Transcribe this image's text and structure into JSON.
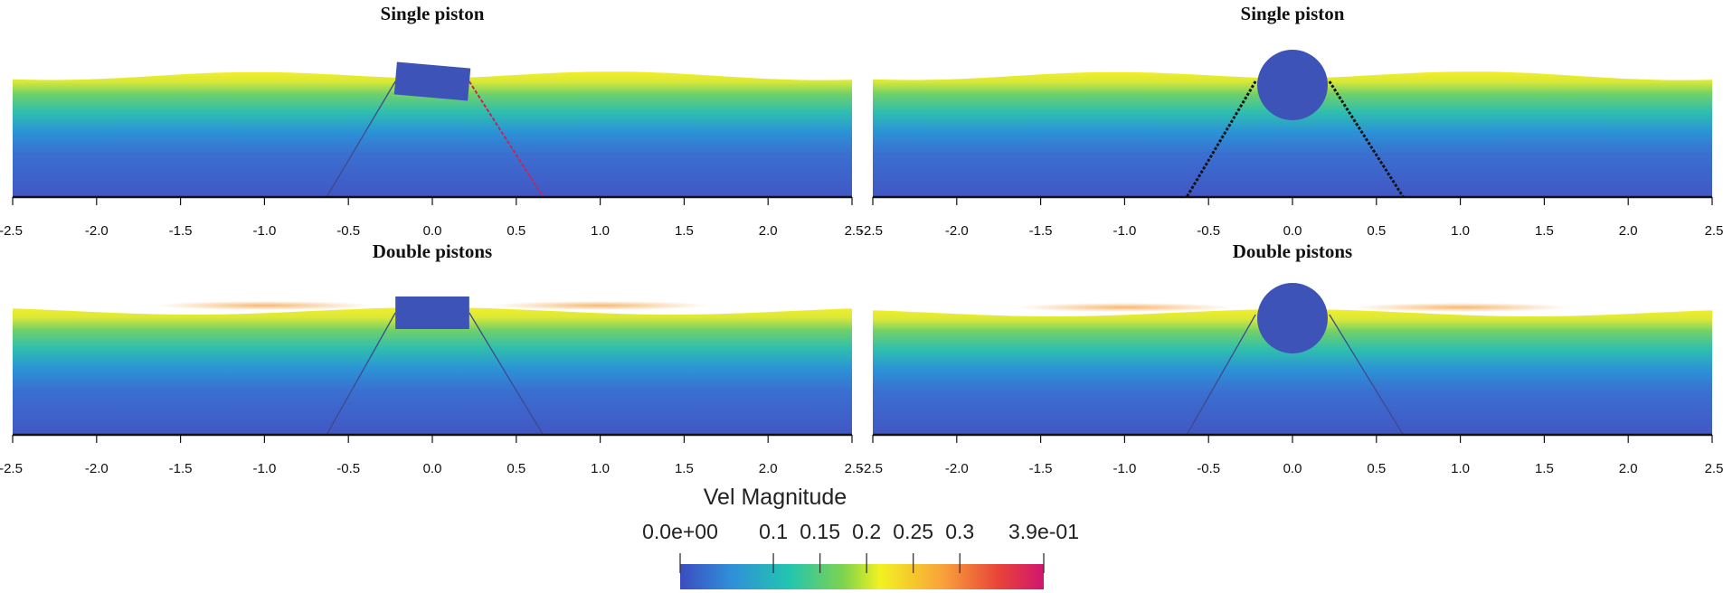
{
  "chart_data": {
    "type": "heatmap",
    "colorbar": {
      "title": "Vel Magnitude",
      "range": [
        0,
        0.39
      ],
      "ticks": [
        {
          "value": 0,
          "label": "0.0e+00"
        },
        {
          "value": 0.1,
          "label": "0.1"
        },
        {
          "value": 0.15,
          "label": "0.15"
        },
        {
          "value": 0.2,
          "label": "0.2"
        },
        {
          "value": 0.25,
          "label": "0.25"
        },
        {
          "value": 0.3,
          "label": "0.3"
        },
        {
          "value": 0.39,
          "label": "3.9e-01"
        }
      ],
      "colors": [
        "#3b4cc0",
        "#2f8fd8",
        "#22c5b0",
        "#7fd34e",
        "#f2f220",
        "#f9a33a",
        "#e8413a",
        "#d0166f"
      ]
    },
    "panels": [
      {
        "id": "top-left",
        "title": "Single piston",
        "body": "box",
        "tilt": 5,
        "xlim": [
          -2.5,
          2.5
        ],
        "xticks": [
          -2.5,
          -2.0,
          -1.5,
          -1.0,
          -0.5,
          0.0,
          0.5,
          1.0,
          1.5,
          2.0,
          2.5
        ],
        "xtick_labels": [
          "-2.5",
          "-2.0",
          "-1.5",
          "-1.0",
          "-0.5",
          "0.0",
          "0.5",
          "1.0",
          "1.5",
          "2.0",
          "2.5"
        ]
      },
      {
        "id": "top-right",
        "title": "Single piston",
        "body": "circle",
        "tilt": 0,
        "xlim": [
          -2.5,
          2.5
        ],
        "xticks": [
          -2.5,
          -2.0,
          -1.5,
          -1.0,
          -0.5,
          0.0,
          0.5,
          1.0,
          1.5,
          2.0,
          2.5
        ],
        "xtick_labels": [
          "-2.5",
          "-2.0",
          "-1.5",
          "-1.0",
          "-0.5",
          "0.0",
          "0.5",
          "1.0",
          "1.5",
          "2.0",
          "2.5"
        ]
      },
      {
        "id": "bottom-left",
        "title": "Double pistons",
        "body": "box",
        "tilt": 0,
        "xlim": [
          -2.5,
          2.5
        ],
        "xticks": [
          -2.5,
          -2.0,
          -1.5,
          -1.0,
          -0.5,
          0.0,
          0.5,
          1.0,
          1.5,
          2.0,
          2.5
        ],
        "xtick_labels": [
          "-2.5",
          "-2.0",
          "-1.5",
          "-1.0",
          "-0.5",
          "0.0",
          "0.5",
          "1.0",
          "1.5",
          "2.0",
          "2.5"
        ]
      },
      {
        "id": "bottom-right",
        "title": "Double pistons",
        "body": "circle",
        "tilt": 0,
        "xlim": [
          -2.5,
          2.5
        ],
        "xticks": [
          -2.5,
          -2.0,
          -1.5,
          -1.0,
          -0.5,
          0.0,
          0.5,
          1.0,
          1.5,
          2.0,
          2.5
        ],
        "xtick_labels": [
          "-2.5",
          "-2.0",
          "-1.5",
          "-1.0",
          "-0.5",
          "0.0",
          "0.5",
          "1.0",
          "1.5",
          "2.0",
          "2.5"
        ]
      }
    ]
  }
}
